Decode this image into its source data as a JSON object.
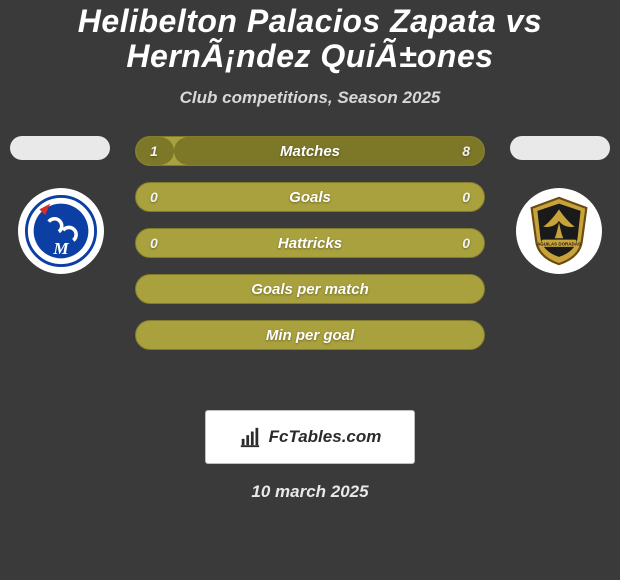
{
  "background_color": "#3a3a3a",
  "text_color": "#ffffff",
  "title": "Helibelton Palacios Zapata vs HernÃ¡ndez QuiÃ±ones",
  "title_fontsize": 32,
  "subtitle": "Club competitions, Season 2025",
  "subtitle_fontsize": 17,
  "subtitle_color": "#d8d8d8",
  "pill_color": "#e9e9e9",
  "crest_bg": "#ffffff",
  "bar": {
    "track_color": "#a9a13d",
    "track_border": "#837c2b",
    "fill_left_color": "#7d7728",
    "fill_right_color": "#7d7728",
    "label_color": "#ffffff",
    "value_color": "#f2f2f2",
    "label_fontsize": 15,
    "value_fontsize": 14,
    "height": 30,
    "radius": 15
  },
  "rows": [
    {
      "label": "Matches",
      "left_val": "1",
      "right_val": "8",
      "left_pct": 11,
      "right_pct": 89
    },
    {
      "label": "Goals",
      "left_val": "0",
      "right_val": "0",
      "left_pct": 0,
      "right_pct": 0
    },
    {
      "label": "Hattricks",
      "left_val": "0",
      "right_val": "0",
      "left_pct": 0,
      "right_pct": 0
    },
    {
      "label": "Goals per match",
      "left_val": "",
      "right_val": "",
      "left_pct": 0,
      "right_pct": 0
    },
    {
      "label": "Min per goal",
      "left_val": "",
      "right_val": "",
      "left_pct": 0,
      "right_pct": 0
    }
  ],
  "left_team": {
    "name": "Millonarios",
    "crest_primary": "#0b3fa3",
    "crest_secondary": "#ffffff",
    "crest_accent": "#d92b2b"
  },
  "right_team": {
    "name": "Aguilas Doradas",
    "crest_primary": "#c8a33a",
    "crest_secondary": "#1a1a1a",
    "crest_accent": "#6a4b12"
  },
  "branding": {
    "bg": "#ffffff",
    "border": "#bfbfbf",
    "text": "FcTables.com",
    "text_color": "#2b2b2b",
    "text_fontsize": 17,
    "icon_color": "#2b2b2b"
  },
  "date": "10 march 2025",
  "date_fontsize": 17,
  "date_color": "#e8e8e8"
}
